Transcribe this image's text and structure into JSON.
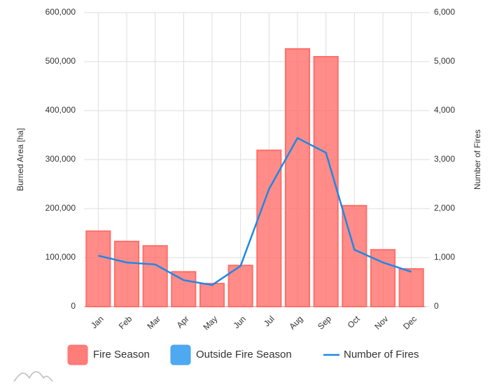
{
  "chart_data": {
    "type": "bar",
    "categories": [
      "Jan",
      "Feb",
      "Mar",
      "Apr",
      "May",
      "Jun",
      "Jul",
      "Aug",
      "Sep",
      "Oct",
      "Nov",
      "Dec"
    ],
    "series": [
      {
        "name": "Fire Season",
        "color": "#ff6f6a",
        "values": [
          154000,
          133000,
          124000,
          71000,
          47000,
          84000,
          319000,
          526000,
          510000,
          206000,
          116000,
          77000
        ]
      },
      {
        "name": "Outside Fire Season",
        "color": "#3ca0f0",
        "values": [
          0,
          0,
          0,
          0,
          0,
          0,
          0,
          0,
          0,
          0,
          0,
          0
        ]
      },
      {
        "name": "Number of Fires",
        "type": "line",
        "axis": "y2",
        "color": "#1e88e5",
        "values": [
          1040,
          900,
          860,
          540,
          440,
          830,
          2400,
          3440,
          3140,
          1160,
          900,
          710
        ]
      }
    ],
    "ylabel": "Burned Area [ha]",
    "y2label": "Number of Fires",
    "ylim": [
      0,
      600000
    ],
    "yticks": [
      0,
      {
        "value": 100000,
        "label": "100,000"
      },
      {
        "value": 200000,
        "label": "200,000"
      },
      {
        "value": 300000,
        "label": "300,000"
      },
      {
        "value": 400000,
        "label": "400,000"
      },
      {
        "value": 500000,
        "label": "500,000"
      },
      {
        "value": 600000,
        "label": "600,000"
      }
    ],
    "y2lim": [
      0,
      6000
    ],
    "y2ticks": [
      0,
      {
        "value": 1000,
        "label": "1,000"
      },
      {
        "value": 2000,
        "label": "2,000"
      },
      {
        "value": 3000,
        "label": "3,000"
      },
      {
        "value": 4000,
        "label": "4,000"
      },
      {
        "value": 5000,
        "label": "5,000"
      },
      {
        "value": 6000,
        "label": "6,000"
      }
    ],
    "grid": true,
    "legend": "bottom"
  }
}
